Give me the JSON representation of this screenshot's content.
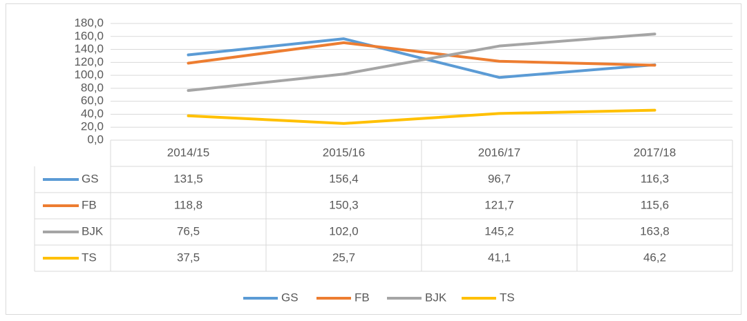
{
  "chart_data": {
    "type": "line",
    "categories": [
      "2014/15",
      "2015/16",
      "2016/17",
      "2017/18"
    ],
    "series": [
      {
        "name": "GS",
        "color": "#5b9bd5",
        "values": [
          131.5,
          156.4,
          96.7,
          116.3
        ],
        "value_labels": [
          "131,5",
          "156,4",
          "96,7",
          "116,3"
        ]
      },
      {
        "name": "FB",
        "color": "#ed7d31",
        "values": [
          118.8,
          150.3,
          121.7,
          115.6
        ],
        "value_labels": [
          "118,8",
          "150,3",
          "121,7",
          "115,6"
        ]
      },
      {
        "name": "BJK",
        "color": "#a5a5a5",
        "values": [
          76.5,
          102.0,
          145.2,
          163.8
        ],
        "value_labels": [
          "76,5",
          "102,0",
          "145,2",
          "163,8"
        ]
      },
      {
        "name": "TS",
        "color": "#ffc000",
        "values": [
          37.5,
          25.7,
          41.1,
          46.2
        ],
        "value_labels": [
          "37,5",
          "25,7",
          "41,1",
          "46,2"
        ]
      }
    ],
    "ylim": [
      0,
      180
    ],
    "yticks": [
      {
        "value": 0,
        "label": "0,0"
      },
      {
        "value": 20,
        "label": "20,0"
      },
      {
        "value": 40,
        "label": "40,0"
      },
      {
        "value": 60,
        "label": "60,0"
      },
      {
        "value": 80,
        "label": "80,0"
      },
      {
        "value": 100,
        "label": "100,0"
      },
      {
        "value": 120,
        "label": "120,0"
      },
      {
        "value": 140,
        "label": "140,0"
      },
      {
        "value": 160,
        "label": "160,0"
      },
      {
        "value": 180,
        "label": "180,0"
      }
    ],
    "grid": true,
    "legend": "bottom"
  }
}
